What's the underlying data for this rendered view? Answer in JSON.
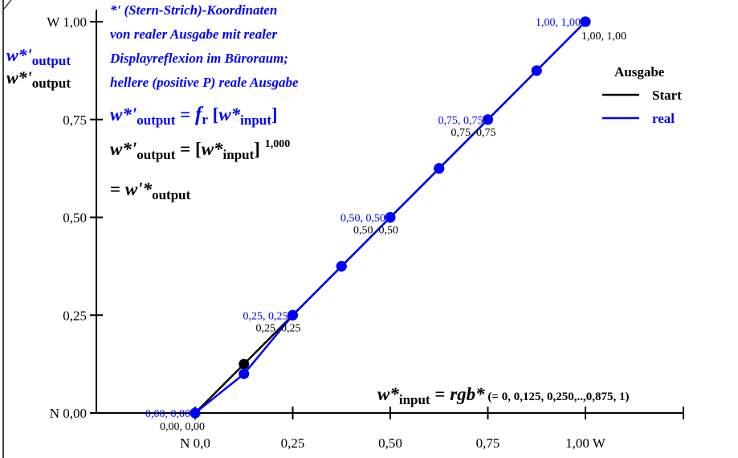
{
  "chart_data": {
    "type": "line",
    "x": [
      0,
      0.125,
      0.25,
      0.375,
      0.5,
      0.625,
      0.75,
      0.875,
      1.0
    ],
    "series": [
      {
        "name": "Start",
        "color": "#000000",
        "values": [
          0,
          0.125,
          0.25,
          0.375,
          0.5,
          0.625,
          0.75,
          0.875,
          1.0
        ]
      },
      {
        "name": "real",
        "color": "#0000ff",
        "values": [
          0,
          0.1,
          0.25,
          0.375,
          0.5,
          0.625,
          0.75,
          0.875,
          1.0
        ]
      }
    ],
    "xlim": [
      0,
      1
    ],
    "ylim": [
      0,
      1
    ],
    "x_ticks": [
      {
        "value": 0.0,
        "label": "N  0,0"
      },
      {
        "value": 0.25,
        "label": "0,25"
      },
      {
        "value": 0.5,
        "label": "0,50"
      },
      {
        "value": 0.75,
        "label": "0,75"
      },
      {
        "value": 1.0,
        "label": "1,00  W"
      }
    ],
    "y_ticks": [
      {
        "value": 0.0,
        "label": "N 0,00"
      },
      {
        "value": 0.25,
        "label": "0,25"
      },
      {
        "value": 0.5,
        "label": "0,50"
      },
      {
        "value": 0.75,
        "label": "0,75"
      },
      {
        "value": 1.0,
        "label": "W 1,00"
      }
    ],
    "y_labels": [
      {
        "main": "w*'",
        "sub": "output",
        "color": "#0000ff"
      },
      {
        "main": "w*'",
        "sub": "output",
        "color": "#000000"
      }
    ],
    "point_labels": [
      {
        "x": 0,
        "y": 0,
        "color": "#0000ff",
        "text": "0,00, 0,00"
      },
      {
        "x": 0,
        "y": 0,
        "color": "#000000",
        "text": "0,00, 0,00"
      },
      {
        "x": 0.25,
        "y": 0.25,
        "color": "#0000ff",
        "text": "0,25, 0,25"
      },
      {
        "x": 0.25,
        "y": 0.25,
        "color": "#000000",
        "text": "0,25, 0,25"
      },
      {
        "x": 0.5,
        "y": 0.5,
        "color": "#0000ff",
        "text": "0,50, 0,50"
      },
      {
        "x": 0.5,
        "y": 0.5,
        "color": "#000000",
        "text": "0,50, 0,50"
      },
      {
        "x": 0.75,
        "y": 0.75,
        "color": "#0000ff",
        "text": "0,75, 0,75"
      },
      {
        "x": 0.75,
        "y": 0.75,
        "color": "#000000",
        "text": "0,75, 0,75"
      },
      {
        "x": 1.0,
        "y": 1.0,
        "color": "#0000ff",
        "text": "1,00, 1,00"
      },
      {
        "x": 1.0,
        "y": 1.0,
        "color": "#000000",
        "text": "1,00, 1,00"
      }
    ],
    "annotations_blue": [
      "*' (Stern-Strich)-Koordinaten",
      "von realer Ausgabe mit realer",
      "Displayreflexion im Büroraum;",
      "hellere (positive P) reale Ausgabe"
    ],
    "formula_blue": {
      "lhs_main": "w*'",
      "lhs_sub": "output",
      "eq": " = ",
      "f": "f",
      "f_sub": "r",
      "open": " [",
      "arg_main": "w*",
      "arg_sub": "input",
      "close": "]"
    },
    "formula_black": {
      "lhs_main": "w*'",
      "lhs_sub": "output",
      "eq": " = [",
      "arg_main": "w*",
      "arg_sub": "input",
      "close": "] ",
      "exp": "1,000"
    },
    "formula_black2": {
      "eq": "= ",
      "main": "w'*",
      "sub": "output"
    },
    "input_formula": {
      "main": "w*",
      "sub": "input",
      "eq": " = ",
      "rgb": "rgb*",
      "rest": " (= 0, 0,125, 0,250,..,0,875, 1)"
    },
    "legend": {
      "title": "Ausgabe",
      "position": "top-right",
      "entries": [
        {
          "label": "Start",
          "color": "#000000"
        },
        {
          "label": "real",
          "color": "#0000ff"
        }
      ]
    }
  }
}
